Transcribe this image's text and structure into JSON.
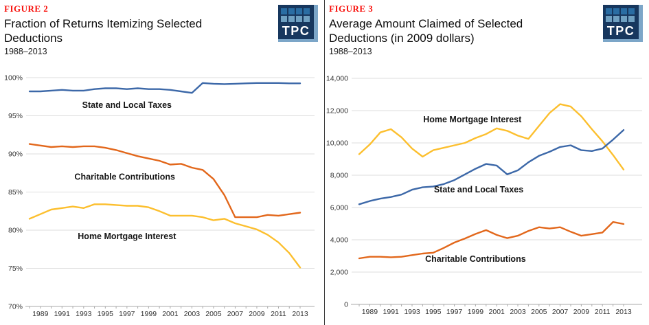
{
  "brand": {
    "navy": "#17375e",
    "tile_top": "#2a6da3",
    "tile_bottom": "#6fa0c1",
    "logo_edge": "#7ca6c8",
    "figure_red": "#f8120d"
  },
  "panels": [
    {
      "figure_label": "FIGURE 2",
      "title": "Fraction of Returns Itemizing Selected Deductions",
      "subtitle": "1988–2013",
      "logo_text": "TPC"
    },
    {
      "figure_label": "FIGURE 3",
      "title": "Average Amount Claimed of Selected Deductions (in 2009 dollars)",
      "subtitle": "1988–2013",
      "logo_text": "TPC"
    }
  ],
  "chart_data": [
    {
      "type": "line",
      "title": "Fraction of Returns Itemizing Selected Deductions",
      "subtitle": "1988–2013",
      "x": [
        1988,
        1989,
        1990,
        1991,
        1992,
        1993,
        1994,
        1995,
        1996,
        1997,
        1998,
        1999,
        2000,
        2001,
        2002,
        2003,
        2004,
        2005,
        2006,
        2007,
        2008,
        2009,
        2010,
        2011,
        2012,
        2013
      ],
      "x_tick_labels": [
        1989,
        1991,
        1993,
        1995,
        1997,
        1999,
        2001,
        2003,
        2005,
        2007,
        2009,
        2011,
        2013
      ],
      "ylim": [
        70,
        100
      ],
      "ytick_step": 5,
      "ytick_format": "percent",
      "grid": "horizontal",
      "legend": "inline-labels",
      "series": [
        {
          "name": "State and Local Taxes",
          "color": "#3c68a8",
          "values": [
            98.2,
            98.2,
            98.3,
            98.4,
            98.3,
            98.3,
            98.5,
            98.6,
            98.6,
            98.5,
            98.6,
            98.5,
            98.5,
            98.4,
            98.2,
            98.0,
            99.3,
            99.2,
            99.15,
            99.2,
            99.25,
            99.3,
            99.3,
            99.3,
            99.25,
            99.25
          ],
          "label_x": 1997,
          "label_y": 96.4
        },
        {
          "name": "Charitable Contributions",
          "color": "#e2671b",
          "values": [
            91.3,
            91.1,
            90.9,
            91.0,
            90.9,
            91.0,
            91.0,
            90.8,
            90.5,
            90.1,
            89.7,
            89.4,
            89.1,
            88.6,
            88.7,
            88.2,
            87.9,
            86.7,
            84.6,
            81.7,
            81.7,
            81.7,
            82.0,
            81.9,
            82.1,
            82.3
          ],
          "label_x": 1996.8,
          "label_y": 87.0
        },
        {
          "name": "Home Mortgage Interest",
          "color": "#fcbf2e",
          "values": [
            81.5,
            82.1,
            82.7,
            82.9,
            83.1,
            82.9,
            83.4,
            83.4,
            83.3,
            83.2,
            83.2,
            83.0,
            82.5,
            81.9,
            81.9,
            81.9,
            81.7,
            81.3,
            81.5,
            80.9,
            80.5,
            80.1,
            79.4,
            78.4,
            77.0,
            75.1
          ],
          "label_x": 1997,
          "label_y": 79.2
        }
      ]
    },
    {
      "type": "line",
      "title": "Average Amount Claimed of Selected Deductions (in 2009 dollars)",
      "subtitle": "1988–2013",
      "x": [
        1988,
        1989,
        1990,
        1991,
        1992,
        1993,
        1994,
        1995,
        1996,
        1997,
        1998,
        1999,
        2000,
        2001,
        2002,
        2003,
        2004,
        2005,
        2006,
        2007,
        2008,
        2009,
        2010,
        2011,
        2012,
        2013
      ],
      "x_tick_labels": [
        1989,
        1991,
        1993,
        1995,
        1997,
        1999,
        2001,
        2003,
        2005,
        2007,
        2009,
        2011,
        2013
      ],
      "ylim": [
        0,
        14000
      ],
      "ytick_step": 2000,
      "ytick_format": "thousands",
      "grid": "horizontal",
      "legend": "inline-labels",
      "series": [
        {
          "name": "Home Mortgage Interest",
          "color": "#fcbf2e",
          "values": [
            9300,
            9900,
            10650,
            10850,
            10350,
            9650,
            9150,
            9550,
            9700,
            9850,
            10000,
            10300,
            10550,
            10900,
            10750,
            10450,
            10250,
            11050,
            11850,
            12400,
            12250,
            11650,
            10850,
            10100,
            9250,
            8350
          ],
          "label_x": 1998.7,
          "label_y": 11450
        },
        {
          "name": "State and Local Taxes",
          "color": "#3c68a8",
          "values": [
            6200,
            6400,
            6550,
            6650,
            6800,
            7100,
            7250,
            7300,
            7450,
            7700,
            8050,
            8400,
            8700,
            8600,
            8050,
            8300,
            8800,
            9200,
            9450,
            9750,
            9850,
            9550,
            9500,
            9650,
            10200,
            10800
          ],
          "label_x": 1999.3,
          "label_y": 7100
        },
        {
          "name": "Charitable Contributions",
          "color": "#e2671b",
          "values": [
            2850,
            2950,
            2950,
            2920,
            2950,
            3050,
            3150,
            3200,
            3500,
            3830,
            4080,
            4360,
            4600,
            4300,
            4100,
            4250,
            4550,
            4780,
            4700,
            4780,
            4500,
            4250,
            4350,
            4450,
            5100,
            4980
          ],
          "label_x": 1999.0,
          "label_y": 2800
        }
      ]
    }
  ]
}
